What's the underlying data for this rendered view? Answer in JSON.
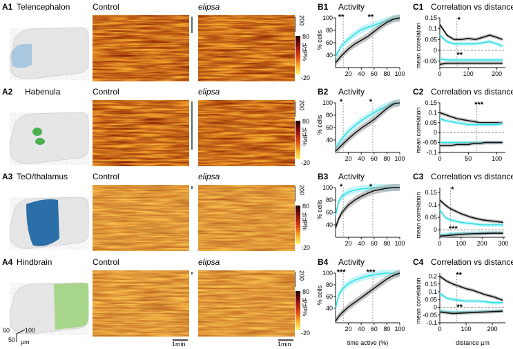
{
  "rows": [
    {
      "id": "A1",
      "region": "Telencephalon",
      "region_color": "#a9c8e0",
      "heat_labels": [
        "Control",
        "elipsa"
      ],
      "act_label": "B1",
      "act_title": "Activity",
      "act_stars": [
        "**",
        "**"
      ],
      "corr_label": "C1",
      "corr_title": "Correlation vs distance",
      "corr_stars": [
        "*",
        "**"
      ]
    },
    {
      "id": "A2",
      "region": "Habenula",
      "region_color": "#4caf50",
      "heat_labels": [
        "Control",
        "elipsa"
      ],
      "act_label": "B2",
      "act_title": "Activity",
      "act_stars": [
        "*",
        "*"
      ],
      "corr_label": "C2",
      "corr_title": "Correlation vs distance",
      "corr_stars": [
        "***"
      ]
    },
    {
      "id": "A3",
      "region": "TeO/thalamus",
      "region_color": "#2a6fa8",
      "heat_labels": [
        "Control",
        "elipsa"
      ],
      "act_label": "B3",
      "act_title": "Activity",
      "act_stars": [
        "*",
        "*"
      ],
      "corr_label": "C3",
      "corr_title": "Correlation vs distance",
      "corr_stars": [
        "*",
        "***"
      ]
    },
    {
      "id": "A4",
      "region": "Hindbrain",
      "region_color": "#a7d58a",
      "heat_labels": [
        "Control",
        "elipsa"
      ],
      "act_label": "B4",
      "act_title": "Activity",
      "act_stars": [
        "***",
        "***"
      ],
      "corr_label": "C4",
      "corr_title": "Correlation vs distance",
      "corr_stars": [
        "**",
        "**"
      ]
    }
  ],
  "colorbar": {
    "top_scale": "200",
    "max": "80",
    "min": "-20",
    "label": "%dF/F"
  },
  "time_scale": "1min",
  "anatomy_scale": {
    "a": "60",
    "b": "100",
    "c": "50",
    "unit": "µm"
  },
  "activity_axes": {
    "ylabel": "% cells",
    "xlabel": "time active (%)",
    "xticks": [
      "20",
      "40",
      "60",
      "80",
      "100"
    ],
    "yticks": [
      "40",
      "60",
      "80",
      "100"
    ]
  },
  "corr_axes": {
    "ylabel": "mean correlation",
    "xlabel": "distance µm",
    "panels": [
      {
        "xticks": [
          "0",
          "100",
          "200"
        ],
        "xmax": 230,
        "yticks": [
          "-0.05",
          "0",
          "0.05",
          "0.1",
          "0.15"
        ],
        "ymin": -0.08,
        "ymax": 0.15
      },
      {
        "xticks": [
          "0",
          "50",
          "100"
        ],
        "xmax": 115,
        "yticks": [
          "-0.1",
          "-0.05",
          "0",
          "0.05",
          "0.1",
          "0.15"
        ],
        "ymin": -0.1,
        "ymax": 0.15
      },
      {
        "xticks": [
          "0",
          "100",
          "200",
          "300"
        ],
        "xmax": 310,
        "yticks": [
          "0",
          "0.05",
          "0.1",
          "0.15"
        ],
        "ymin": -0.03,
        "ymax": 0.17
      },
      {
        "xticks": [
          "0",
          "100",
          "200"
        ],
        "xmax": 250,
        "yticks": [
          "-0.1",
          "-0.05",
          "0",
          "0.05",
          "0.1",
          "0.15",
          "0.2"
        ],
        "ymin": -0.1,
        "ymax": 0.22
      }
    ]
  },
  "chart_data": [
    {
      "type": "line",
      "panel": "B1",
      "x": [
        0,
        10,
        20,
        30,
        40,
        50,
        60,
        70,
        80,
        90,
        100
      ],
      "series": [
        {
          "color": "#2ee0e6",
          "values": [
            38,
            56,
            66,
            74,
            81,
            85,
            88,
            92,
            96,
            99,
            100
          ]
        },
        {
          "color": "#111111",
          "values": [
            28,
            40,
            50,
            58,
            64,
            70,
            78,
            86,
            93,
            98,
            100
          ]
        }
      ],
      "ylim": [
        20,
        100
      ],
      "xlim": [
        0,
        100
      ],
      "vlines": [
        12,
        58
      ]
    },
    {
      "type": "line",
      "panel": "B2",
      "x": [
        0,
        10,
        20,
        30,
        40,
        50,
        60,
        70,
        80,
        90,
        100
      ],
      "series": [
        {
          "color": "#2ee0e6",
          "values": [
            28,
            42,
            54,
            63,
            71,
            78,
            84,
            90,
            95,
            99,
            100
          ]
        },
        {
          "color": "#111111",
          "values": [
            22,
            32,
            42,
            51,
            59,
            66,
            73,
            82,
            91,
            98,
            100
          ]
        }
      ],
      "ylim": [
        20,
        100
      ],
      "xlim": [
        0,
        100
      ],
      "vlines": [
        12,
        58
      ]
    },
    {
      "type": "line",
      "panel": "B3",
      "x": [
        0,
        5,
        10,
        20,
        30,
        40,
        50,
        60,
        70,
        80,
        90,
        100
      ],
      "series": [
        {
          "color": "#2ee0e6",
          "values": [
            55,
            78,
            86,
            93,
            96,
            98,
            99,
            100,
            100,
            100,
            100,
            100
          ]
        },
        {
          "color": "#111111",
          "values": [
            35,
            50,
            60,
            72,
            80,
            86,
            91,
            95,
            97,
            99,
            100,
            100
          ]
        }
      ],
      "ylim": [
        20,
        100
      ],
      "xlim": [
        0,
        100
      ],
      "vlines": [
        12,
        58
      ]
    },
    {
      "type": "line",
      "panel": "B4",
      "x": [
        0,
        5,
        10,
        20,
        30,
        40,
        50,
        60,
        70,
        80,
        90,
        100
      ],
      "series": [
        {
          "color": "#2ee0e6",
          "values": [
            40,
            62,
            72,
            82,
            88,
            92,
            95,
            97,
            99,
            100,
            100,
            100
          ]
        },
        {
          "color": "#111111",
          "values": [
            18,
            26,
            32,
            42,
            50,
            58,
            66,
            74,
            82,
            90,
            96,
            100
          ]
        }
      ],
      "ylim": [
        15,
        100
      ],
      "xlim": [
        0,
        100
      ],
      "vlines": [
        12,
        58
      ]
    },
    {
      "type": "line",
      "panel": "C1",
      "x": [
        0,
        25,
        50,
        75,
        100,
        125,
        150,
        175,
        200,
        220
      ],
      "series": [
        {
          "color": "#111111",
          "values": [
            0.12,
            0.07,
            0.05,
            0.05,
            0.055,
            0.05,
            0.06,
            0.07,
            0.06,
            0.05
          ]
        },
        {
          "color": "#2ee0e6",
          "values": [
            0.07,
            0.04,
            0.03,
            0.03,
            0.03,
            0.03,
            0.035,
            0.04,
            0.03,
            0.02
          ]
        },
        {
          "color": "#2ee0e6",
          "values": [
            -0.04,
            -0.045,
            -0.045,
            -0.045,
            -0.045,
            -0.045,
            -0.045,
            -0.045,
            -0.045,
            -0.045
          ]
        },
        {
          "color": "#111111",
          "values": [
            -0.065,
            -0.06,
            -0.06,
            -0.06,
            -0.06,
            -0.06,
            -0.06,
            -0.06,
            -0.06,
            -0.06
          ]
        }
      ],
      "vlines": [
        60
      ]
    },
    {
      "type": "line",
      "panel": "C2",
      "x": [
        0,
        10,
        20,
        30,
        40,
        50,
        60,
        70,
        80,
        90,
        100,
        110
      ],
      "series": [
        {
          "color": "#111111",
          "values": [
            0.1,
            0.09,
            0.08,
            0.07,
            0.065,
            0.06,
            0.055,
            0.05,
            0.05,
            0.05,
            0.05,
            0.05
          ]
        },
        {
          "color": "#2ee0e6",
          "values": [
            0.07,
            0.06,
            0.055,
            0.05,
            0.045,
            0.04,
            0.04,
            0.04,
            0.04,
            0.04,
            0.04,
            0.045
          ]
        },
        {
          "color": "#2ee0e6",
          "values": [
            -0.05,
            -0.05,
            -0.05,
            -0.05,
            -0.05,
            -0.05,
            -0.05,
            -0.05,
            -0.05,
            -0.05,
            -0.05,
            -0.05
          ]
        },
        {
          "color": "#111111",
          "values": [
            -0.065,
            -0.065,
            -0.065,
            -0.06,
            -0.06,
            -0.06,
            -0.055,
            -0.055,
            -0.05,
            -0.05,
            -0.05,
            -0.05
          ]
        }
      ],
      "vlines": [
        65
      ]
    },
    {
      "type": "line",
      "panel": "C3",
      "x": [
        0,
        25,
        50,
        75,
        100,
        150,
        200,
        250,
        300
      ],
      "series": [
        {
          "color": "#111111",
          "values": [
            0.12,
            0.1,
            0.085,
            0.075,
            0.065,
            0.05,
            0.04,
            0.035,
            0.03
          ]
        },
        {
          "color": "#2ee0e6",
          "values": [
            0.08,
            0.05,
            0.04,
            0.035,
            0.03,
            0.025,
            0.02,
            0.02,
            0.02
          ]
        },
        {
          "color": "#2ee0e6",
          "values": [
            -0.02,
            -0.018,
            -0.016,
            -0.015,
            -0.014,
            -0.013,
            -0.012,
            -0.012,
            -0.012
          ]
        },
        {
          "color": "#111111",
          "values": [
            -0.025,
            -0.024,
            -0.022,
            -0.02,
            -0.018,
            -0.016,
            -0.015,
            -0.014,
            -0.014
          ]
        }
      ],
      "vlines": [
        50
      ]
    },
    {
      "type": "line",
      "panel": "C4",
      "x": [
        0,
        25,
        50,
        75,
        100,
        125,
        150,
        175,
        200,
        225,
        240
      ],
      "series": [
        {
          "color": "#111111",
          "values": [
            0.2,
            0.17,
            0.15,
            0.135,
            0.12,
            0.11,
            0.095,
            0.08,
            0.07,
            0.055,
            0.045
          ]
        },
        {
          "color": "#2ee0e6",
          "values": [
            0.09,
            0.06,
            0.05,
            0.045,
            0.04,
            0.04,
            0.04,
            0.035,
            0.03,
            0.03,
            0.03
          ]
        },
        {
          "color": "#2ee0e6",
          "values": [
            -0.02,
            -0.03,
            -0.03,
            -0.03,
            -0.03,
            -0.03,
            -0.028,
            -0.026,
            -0.025,
            -0.024,
            -0.024
          ]
        },
        {
          "color": "#111111",
          "values": [
            -0.03,
            -0.035,
            -0.04,
            -0.038,
            -0.036,
            -0.034,
            -0.032,
            -0.03,
            -0.028,
            -0.026,
            -0.025
          ]
        }
      ],
      "vlines": [
        65
      ]
    }
  ]
}
